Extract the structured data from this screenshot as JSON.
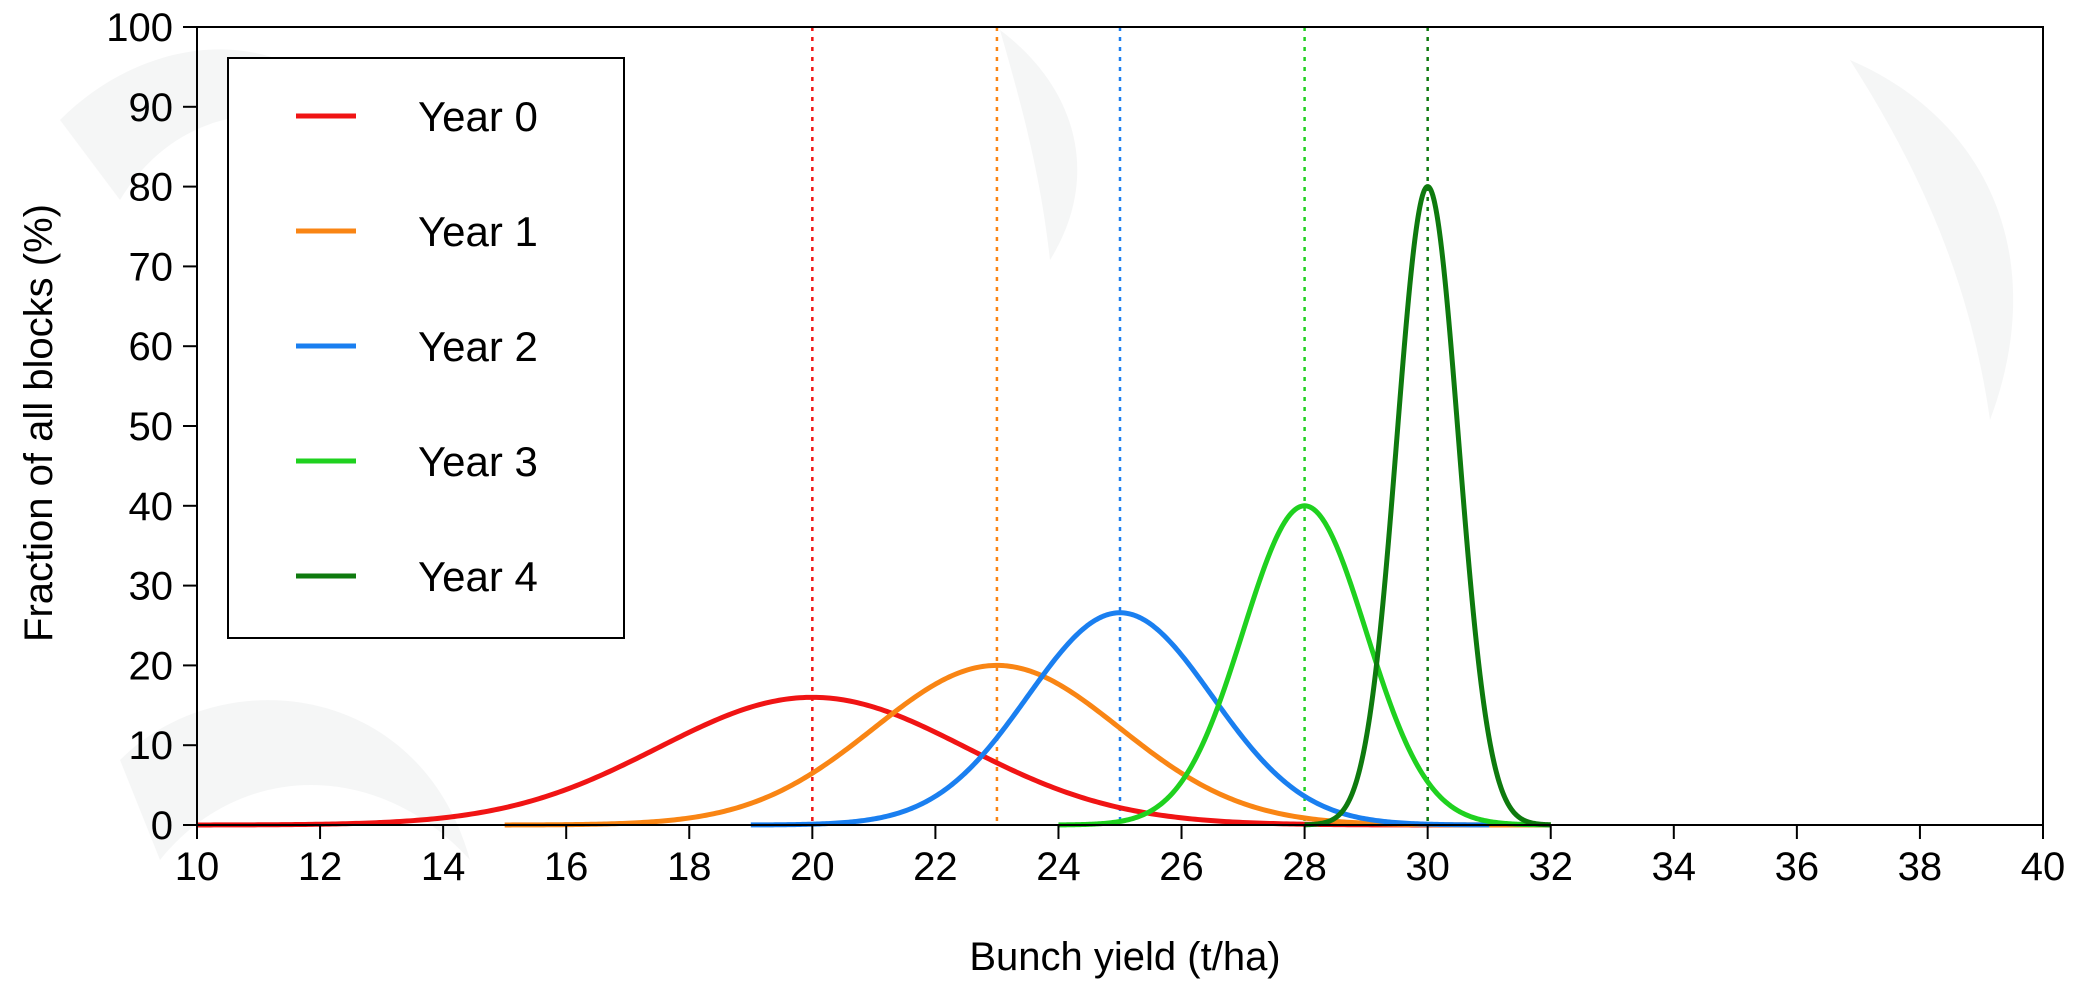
{
  "chart_data": {
    "type": "line",
    "xlabel": "Bunch yield (t/ha)",
    "ylabel": "Fraction of all blocks (%)",
    "xlim": [
      10,
      40
    ],
    "ylim": [
      0,
      100
    ],
    "x_ticks": [
      "10",
      "12",
      "14",
      "16",
      "18",
      "20",
      "22",
      "24",
      "26",
      "28",
      "30",
      "32",
      "34",
      "36",
      "38",
      "40"
    ],
    "y_ticks": [
      "0",
      "10",
      "20",
      "30",
      "40",
      "50",
      "60",
      "70",
      "80",
      "90",
      "100"
    ],
    "grid": false,
    "legend_position": "top-left",
    "series": [
      {
        "name": "Year 0",
        "color": "#f01414",
        "mean": 20,
        "peak": 16,
        "sd": 2.5,
        "range": [
          10,
          32
        ],
        "x": [
          10,
          12,
          14,
          16,
          18,
          20,
          22,
          24,
          26,
          28,
          30
        ],
        "y": [
          0.06,
          0.27,
          0.9,
          4.3,
          11.6,
          16,
          11.6,
          4.3,
          0.9,
          0.14,
          0.01
        ]
      },
      {
        "name": "Year 1",
        "color": "#f98514",
        "mean": 23,
        "peak": 20,
        "sd": 2.0,
        "range": [
          15,
          32
        ],
        "x": [
          15,
          17,
          19,
          21,
          23,
          25,
          27,
          29,
          31
        ],
        "y": [
          0.01,
          0.2,
          2.7,
          12.1,
          20,
          12.1,
          2.7,
          0.2,
          0.01
        ]
      },
      {
        "name": "Year 2",
        "color": "#1a7ff0",
        "mean": 25,
        "peak": 26.6,
        "sd": 1.5,
        "range": [
          19,
          31
        ],
        "x": [
          19,
          21,
          23,
          24,
          25,
          26,
          27,
          29,
          31
        ],
        "y": [
          0.01,
          0.8,
          10.9,
          21.3,
          26.6,
          21.3,
          10.9,
          0.8,
          0.01
        ]
      },
      {
        "name": "Year 3",
        "color": "#1fd11f",
        "mean": 28,
        "peak": 40,
        "sd": 1.0,
        "range": [
          24,
          32
        ],
        "x": [
          24,
          26,
          27,
          28,
          29,
          30,
          32
        ],
        "y": [
          0.01,
          5.4,
          24.3,
          40,
          24.3,
          5.4,
          0.01
        ]
      },
      {
        "name": "Year 4",
        "color": "#0e7a0e",
        "mean": 30,
        "peak": 80,
        "sd": 0.5,
        "range": [
          28,
          32
        ],
        "x": [
          28,
          29,
          29.5,
          30,
          30.5,
          31,
          32
        ],
        "y": [
          0.03,
          10.8,
          48.5,
          80,
          48.5,
          10.8,
          0.03
        ]
      }
    ]
  }
}
